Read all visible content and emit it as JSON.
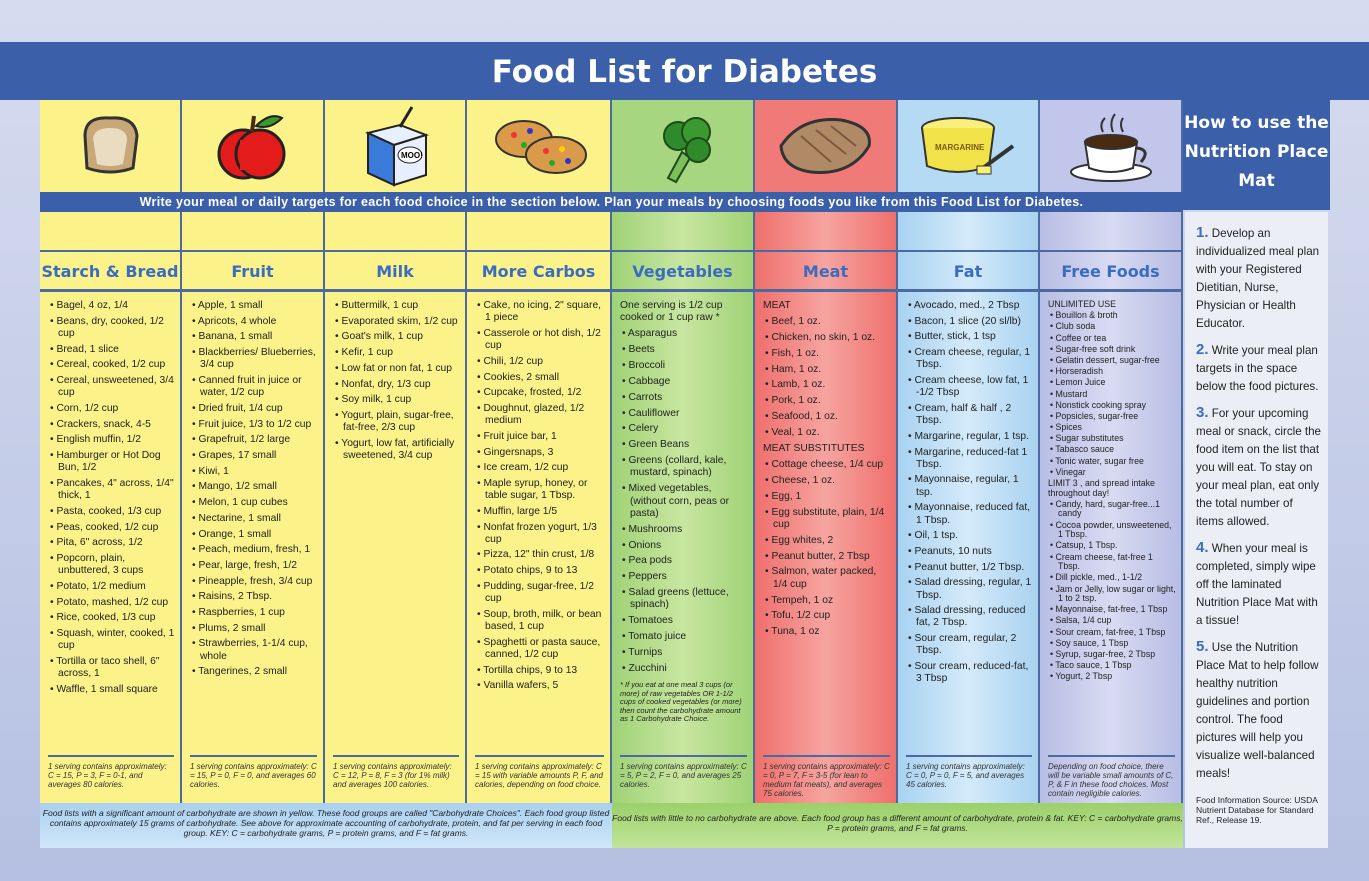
{
  "title": "Food List for Diabetes",
  "instruction": "Write your meal or daily targets for each food choice in the section below. Plan your meals by choosing foods you like from this Food List for Diabetes.",
  "colors": {
    "yellow": "#fbf28a",
    "green": "#a3d67e",
    "red": "#f17b78",
    "blue": "#b6daf3",
    "lavender": "#c5c9e9",
    "brand": "#3b5fa8"
  },
  "columns": [
    {
      "name": "Starch & Bread",
      "icon": "bread-icon",
      "items": [
        "Bagel, 4 oz, 1/4",
        "Beans, dry, cooked, 1/2 cup",
        "Bread, 1 slice",
        "Cereal, cooked, 1/2 cup",
        "Cereal, unsweetened, 3/4 cup",
        "Corn, 1/2 cup",
        "Crackers, snack, 4-5",
        "English muffin, 1/2",
        "Hamburger or Hot Dog Bun, 1/2",
        "Pancakes, 4\" across, 1/4\" thick, 1",
        "Pasta, cooked, 1/3 cup",
        "Peas, cooked, 1/2 cup",
        "Pita, 6\" across, 1/2",
        "Popcorn, plain, unbuttered, 3 cups",
        "Potato, 1/2 medium",
        "Potato, mashed, 1/2 cup",
        "Rice, cooked, 1/3 cup",
        "Squash, winter, cooked, 1 cup",
        "Tortilla or taco shell, 6\" across, 1",
        "Waffle, 1 small square"
      ],
      "footer": "1 serving contains approximately: C = 15, P = 3, F = 0-1, and averages 80 calories."
    },
    {
      "name": "Fruit",
      "icon": "apple-icon",
      "items": [
        "Apple, 1 small",
        "Apricots, 4 whole",
        "Banana, 1 small",
        "Blackberries/ Blueberries, 3/4 cup",
        "Canned fruit in juice or water, 1/2 cup",
        "Dried fruit, 1/4 cup",
        "Fruit juice, 1/3 to 1/2 cup",
        "Grapefruit, 1/2 large",
        "Grapes, 17 small",
        "Kiwi, 1",
        "Mango, 1/2 small",
        "Melon, 1 cup cubes",
        "Nectarine, 1 small",
        "Orange, 1 small",
        "Peach, medium, fresh, 1",
        "Pear, large, fresh, 1/2",
        "Pineapple, fresh, 3/4 cup",
        "Raisins, 2 Tbsp.",
        "Raspberries, 1 cup",
        "Plums, 2 small",
        "Strawberries, 1-1/4 cup, whole",
        "Tangerines, 2 small"
      ],
      "footer": "1 serving contains approximately: C = 15, P = 0, F = 0, and averages 60 calories."
    },
    {
      "name": "Milk",
      "icon": "milk-carton-icon",
      "icon_text": "MOO!",
      "items": [
        "Buttermilk, 1 cup",
        "Evaporated skim, 1/2 cup",
        "Goat's milk, 1 cup",
        "Kefir, 1 cup",
        "Low fat or non fat, 1 cup",
        "Nonfat, dry, 1/3 cup",
        "Soy milk, 1 cup",
        "Yogurt, plain, sugar-free, fat-free, 2/3 cup",
        "Yogurt, low fat, artificially sweetened, 3/4 cup"
      ],
      "footer": "1 serving contains approximately: C = 12, P = 8, F = 3 (for 1% milk) and averages 100 calories."
    },
    {
      "name": "More Carbos",
      "icon": "cookies-icon",
      "items": [
        "Cake, no icing, 2\" square, 1 piece",
        "Casserole or hot dish, 1/2 cup",
        "Chili, 1/2 cup",
        "Cookies, 2 small",
        "Cupcake, frosted, 1/2",
        "Doughnut, glazed, 1/2 medium",
        "Fruit juice bar, 1",
        "Gingersnaps, 3",
        "Ice cream, 1/2 cup",
        "Maple syrup, honey, or table sugar, 1 Tbsp.",
        "Muffin, large 1/5",
        "Nonfat frozen yogurt, 1/3 cup",
        "Pizza, 12\" thin crust, 1/8",
        "Potato chips, 9 to 13",
        "Pudding, sugar-free, 1/2 cup",
        "Soup, broth, milk, or bean based, 1 cup",
        "Spaghetti or pasta sauce, canned, 1/2 cup",
        "Tortilla chips, 9 to 13",
        "Vanilla wafers, 5"
      ],
      "footer": "1 serving contains approximately: C = 15 with variable amounts P, F, and calories, depending on food choice."
    },
    {
      "name": "Vegetables",
      "icon": "broccoli-icon",
      "intro": "One serving is 1/2 cup cooked or 1 cup raw *",
      "items": [
        "Asparagus",
        "Beets",
        "Broccoli",
        "Cabbage",
        "Carrots",
        "Cauliflower",
        "Celery",
        "Green Beans",
        "Greens (collard, kale, mustard, spinach)",
        "Mixed vegetables, (without corn, peas or pasta)",
        "Mushrooms",
        "Onions",
        "Pea pods",
        "Peppers",
        "Salad greens (lettuce, spinach)",
        "Tomatoes",
        "Tomato juice",
        "Turnips",
        "Zucchini"
      ],
      "note": "* If you eat at one meal 3 cups (or more) of raw vegetables OR 1-1/2 cups of cooked vegetables (or more) then count the carbohydrate amount as 1 Carbohydrate Choice.",
      "footer": "1 serving contains approximately: C = 5, P = 2, F = 0, and averages 25 calories."
    },
    {
      "name": "Meat",
      "icon": "chicken-breast-icon",
      "heading1": "MEAT",
      "items": [
        "Beef, 1 oz.",
        "Chicken, no skin, 1 oz.",
        "Fish, 1 oz.",
        "Ham, 1 oz.",
        "Lamb, 1 oz.",
        "Pork, 1 oz.",
        "Seafood, 1 oz.",
        "Veal, 1 oz."
      ],
      "heading2": "MEAT SUBSTITUTES",
      "items2": [
        "Cottage cheese, 1/4 cup",
        "Cheese, 1 oz.",
        "Egg, 1",
        "Egg substitute, plain, 1/4 cup",
        "Egg whites, 2",
        "Peanut butter, 2 Tbsp",
        "Salmon, water packed, 1/4 cup",
        "Tempeh, 1 oz",
        "Tofu, 1/2 cup",
        "Tuna, 1 oz"
      ],
      "footer": "1 serving contains approximately: C = 0, P = 7, F = 3-5 (for lean to medium fat meats), and averages 75 calories."
    },
    {
      "name": "Fat",
      "icon": "margarine-tub-icon",
      "icon_text": "MARGARINE",
      "items": [
        "Avocado, med., 2 Tbsp",
        "Bacon, 1 slice (20 sl/lb)",
        "Butter, stick, 1 tsp",
        "Cream cheese, regular, 1 Tbsp.",
        "Cream cheese, low fat, 1 -1/2 Tbsp",
        "Cream, half & half , 2 Tbsp.",
        "Margarine, regular, 1 tsp.",
        "Margarine, reduced-fat 1 Tbsp.",
        "Mayonnaise, regular, 1 tsp.",
        "Mayonnaise, reduced fat, 1 Tbsp.",
        "Oil, 1 tsp.",
        "Peanuts, 10 nuts",
        "Peanut butter, 1/2 Tbsp.",
        "Salad dressing, regular, 1 Tbsp.",
        "Salad dressing, reduced fat, 2 Tbsp.",
        "Sour cream, regular, 2 Tbsp.",
        "Sour cream, reduced-fat, 3 Tbsp"
      ],
      "footer": "1 serving contains approximately: C = 0, P = 0, F = 5, and averages 45 calories."
    },
    {
      "name": "Free Foods",
      "icon": "coffee-cup-icon",
      "heading1": "UNLIMITED USE",
      "items": [
        "Bouillon & broth",
        "Club soda",
        "Coffee or tea",
        "Sugar-free soft drink",
        "Gelatin dessert, sugar-free",
        "Horseradish",
        "Lemon Juice",
        "Mustard",
        "Nonstick cooking spray",
        "Popsicles, sugar-free",
        "Spices",
        "Sugar substitutes",
        "Tabasco sauce",
        "Tonic water, sugar free",
        "Vinegar"
      ],
      "heading2": "LIMIT 3 , and spread intake throughout day!",
      "items2": [
        "Candy, hard, sugar-free...1 candy",
        "Cocoa powder, unsweetened, 1 Tbsp.",
        "Catsup, 1 Tbsp.",
        "Cream cheese, fat-free 1 Tbsp.",
        "Dill pickle, med., 1-1/2",
        "Jam or Jelly, low sugar or light, 1 to 2 tsp.",
        "Mayonnaise, fat-free, 1 Tbsp",
        "Salsa, 1/4 cup",
        "Sour cream, fat-free, 1 Tbsp",
        "Soy sauce, 1 Tbsp",
        "Syrup, sugar-free, 2 Tbsp",
        "Taco sauce, 1 Tbsp",
        "Yogurt, 2 Tbsp"
      ],
      "footer": "Depending on food choice, there will be variable small amounts of C, P, & F in these food choices. Most contain negligible calories."
    }
  ],
  "notes": {
    "carb": "Food lists with a significant amount of carbohydrate are shown in yellow. These food groups are called \"Carbohydrate Choices\". Each food group listed contains approximately 15 grams of carbohydrate. See above for approximate accounting of carbohydrate, protein, and fat per serving in each food group. KEY: C = carbohydrate grams, P = protein grams, and F = fat grams.",
    "noncarb": "Food lists with little to no carbohydrate are above. Each food group has a different amount of carbohydrate, protein & fat. KEY: C = carbohydrate grams, P = protein grams, and F = fat grams."
  },
  "howto": {
    "title": "How to use the Nutrition Place Mat",
    "steps": [
      {
        "num": "1.",
        "text": "Develop an individualized meal plan with your Registered Dietitian, Nurse, Physician or Health Educator."
      },
      {
        "num": "2.",
        "text": "Write your meal plan targets in the space below the food pictures."
      },
      {
        "num": "3.",
        "text": "For your upcoming meal or snack, circle the food item on the list that you will eat. To stay on your meal plan, eat only the total number of items allowed."
      },
      {
        "num": "4.",
        "text": "When your meal is completed, simply wipe off the laminated Nutrition Place Mat with a tissue!"
      },
      {
        "num": "5.",
        "text": "Use the Nutrition Place Mat to help follow healthy nutrition guidelines and portion control. The food pictures will help you visualize well-balanced meals!"
      }
    ],
    "source": "Food Information Source: USDA Nutrient Database for Standard Ref., Release 19."
  }
}
